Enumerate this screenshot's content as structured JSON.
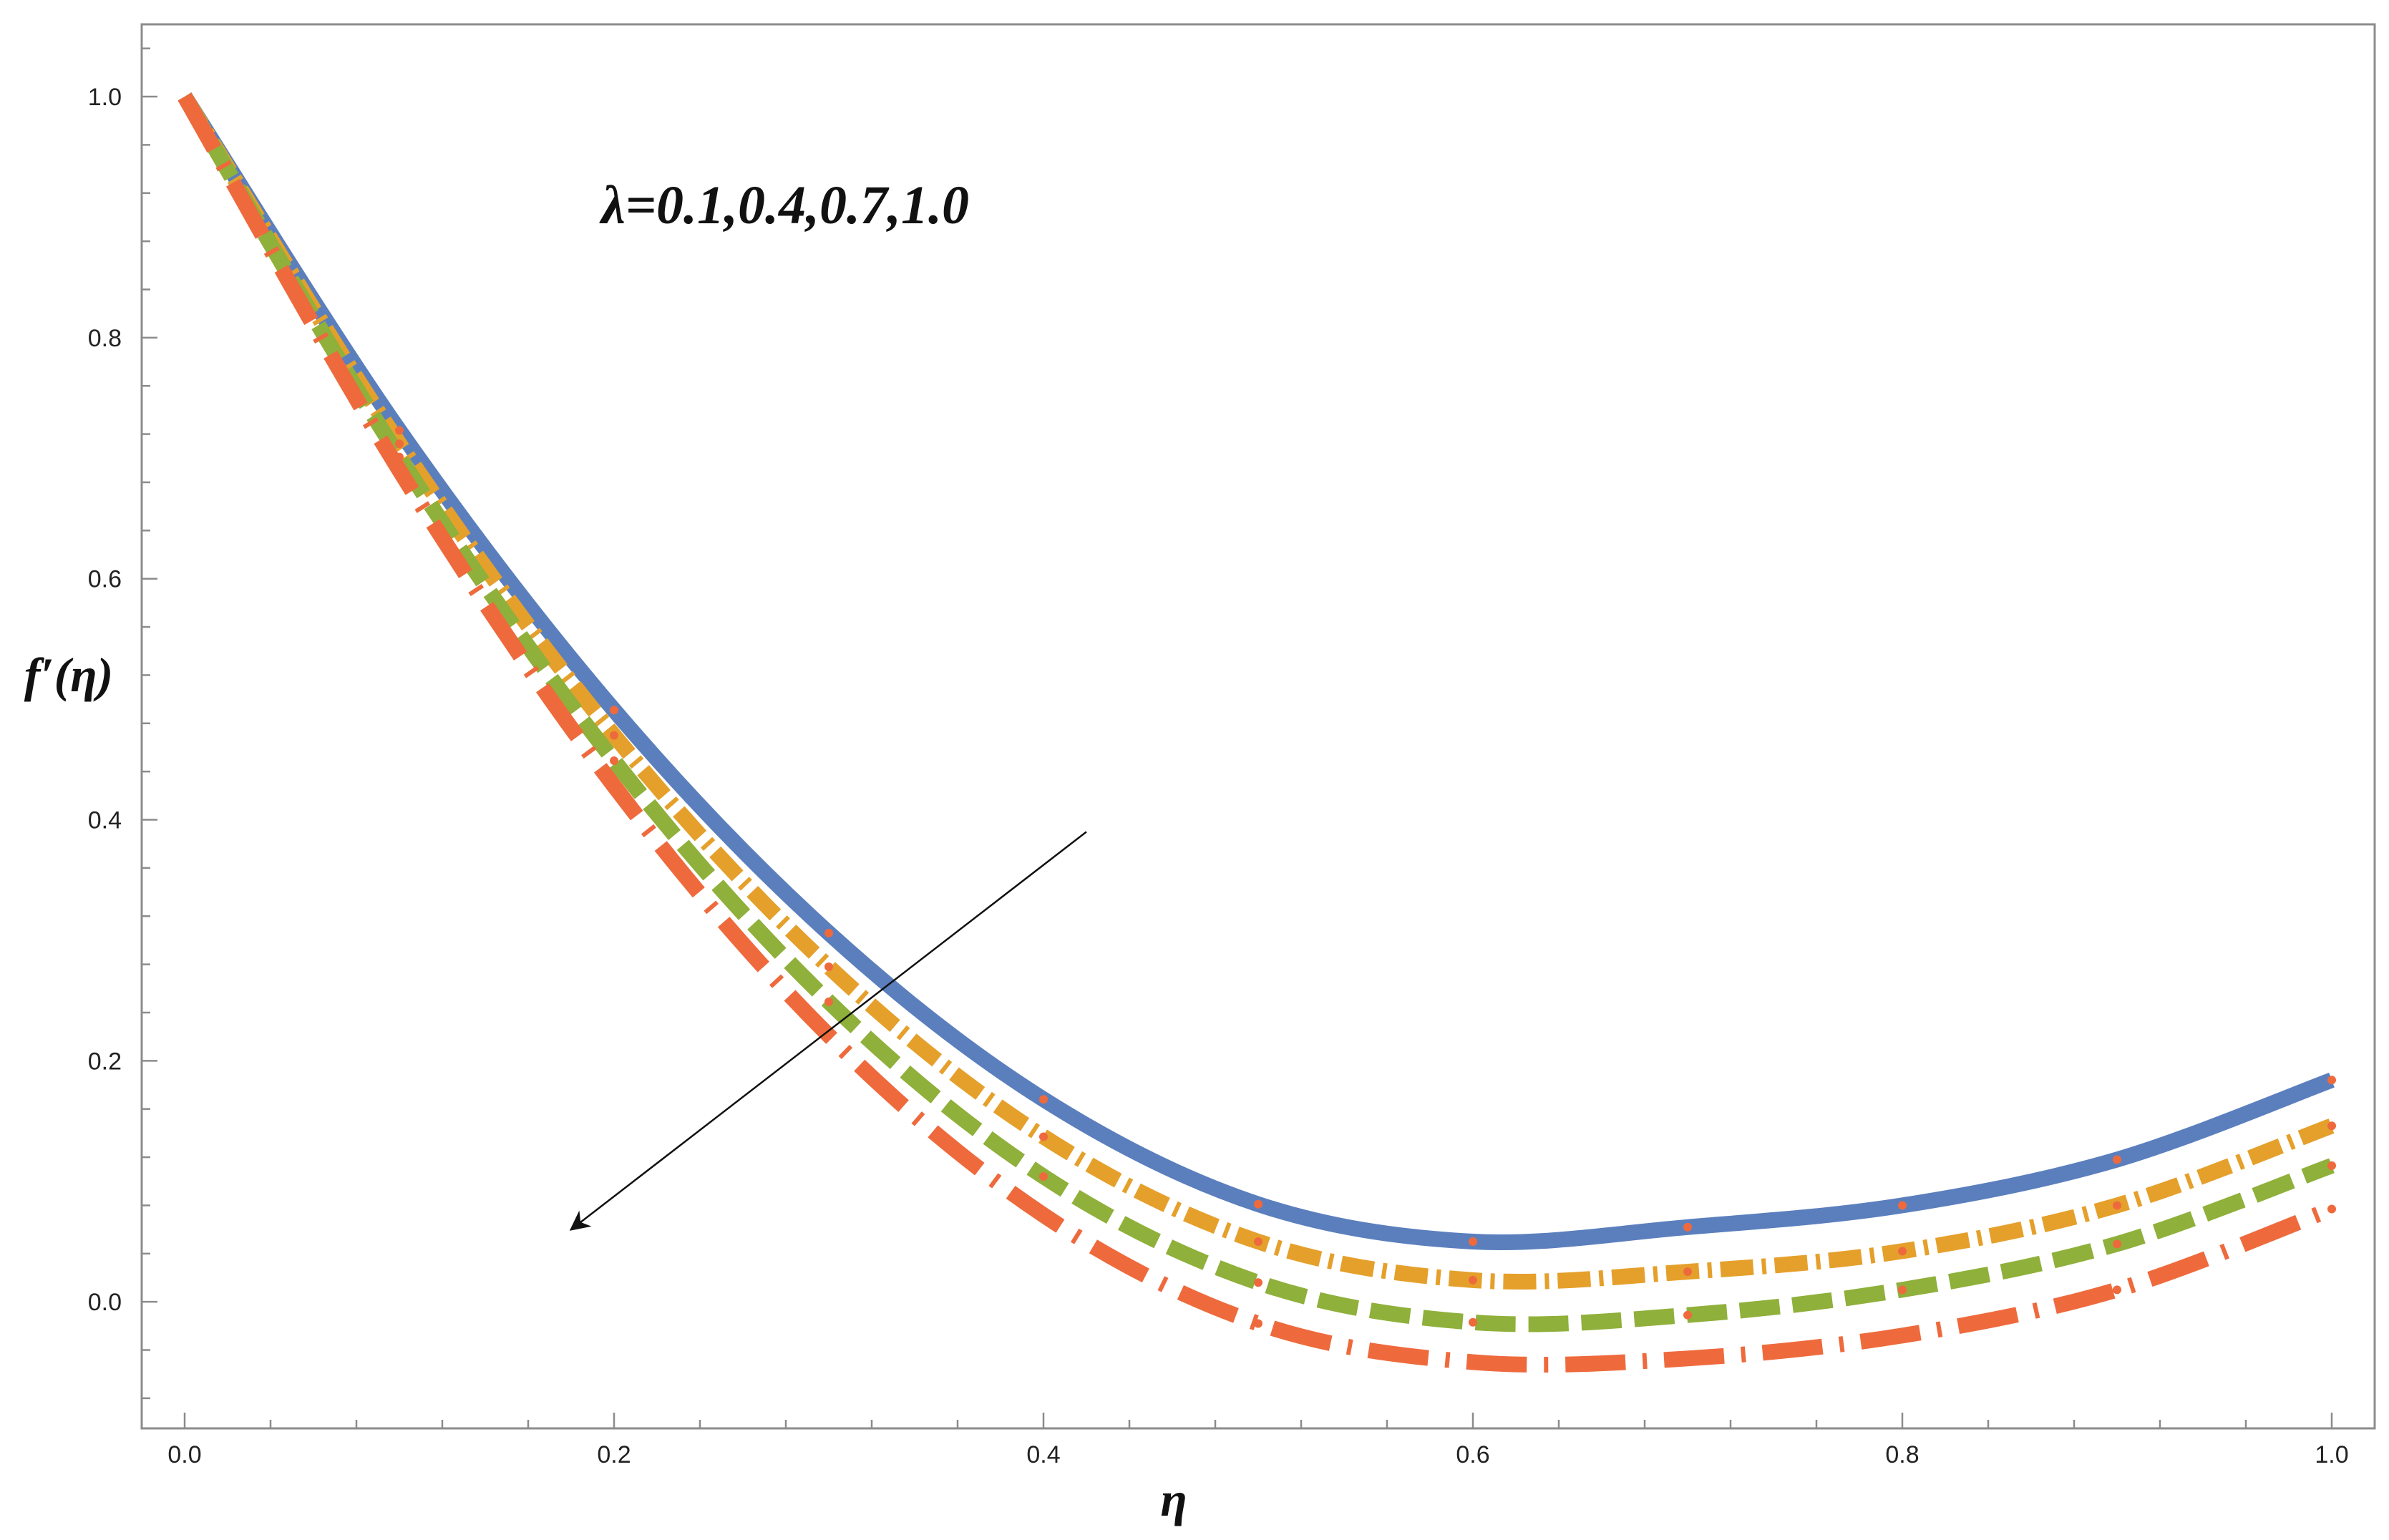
{
  "chart_data": {
    "type": "line",
    "title": "",
    "xlabel": "η",
    "ylabel": "f′(η)",
    "xlim": [
      -0.02,
      1.02
    ],
    "ylim": [
      -0.105,
      1.06
    ],
    "x_ticks": [
      "0.0",
      "0.2",
      "0.4",
      "0.6",
      "0.8",
      "1.0"
    ],
    "y_ticks": [
      "0.0",
      "0.2",
      "0.4",
      "0.6",
      "0.8",
      "1.0"
    ],
    "grid": false,
    "legend": "none",
    "annotation": {
      "text": "λ=0.1,0.4,0.7,1.0",
      "arrow_from": [
        0.42,
        0.39
      ],
      "arrow_to": [
        0.18,
        0.06
      ]
    },
    "series": [
      {
        "color": "#5b7fbd",
        "style": "solid",
        "x": [
          0.0,
          0.1,
          0.2,
          0.3,
          0.4,
          0.5,
          0.6,
          0.7,
          0.8,
          0.9,
          1.0
        ],
        "y": [
          1.0,
          0.723,
          0.491,
          0.306,
          0.168,
          0.081,
          0.05,
          0.062,
          0.08,
          0.118,
          0.184
        ]
      },
      {
        "color": "#e5a02b",
        "style": "dot-dashed",
        "x": [
          0.0,
          0.1,
          0.2,
          0.3,
          0.4,
          0.5,
          0.6,
          0.7,
          0.8,
          0.9,
          1.0
        ],
        "y": [
          1.0,
          0.712,
          0.47,
          0.278,
          0.137,
          0.05,
          0.018,
          0.025,
          0.042,
          0.08,
          0.146
        ]
      },
      {
        "color": "#8fb03a",
        "style": "dashed",
        "x": [
          0.0,
          0.1,
          0.2,
          0.3,
          0.4,
          0.5,
          0.6,
          0.7,
          0.8,
          0.9,
          1.0
        ],
        "y": [
          1.0,
          0.701,
          0.449,
          0.249,
          0.104,
          0.016,
          -0.017,
          -0.011,
          0.01,
          0.048,
          0.113
        ]
      },
      {
        "color": "#ee6a3d",
        "style": "long-dashed",
        "x": [
          0.0,
          0.1,
          0.2,
          0.3,
          0.4,
          0.5,
          0.6,
          0.7,
          0.8,
          0.9,
          1.0
        ],
        "y": [
          1.0,
          0.69,
          0.428,
          0.221,
          0.072,
          -0.018,
          -0.05,
          -0.047,
          -0.028,
          0.01,
          0.077
        ]
      }
    ]
  }
}
